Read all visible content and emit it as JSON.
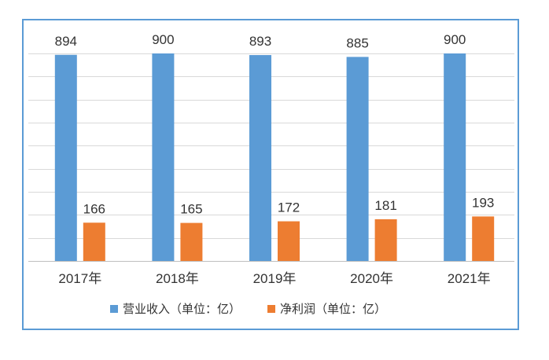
{
  "chart_data": {
    "type": "bar",
    "categories": [
      "2017年",
      "2018年",
      "2019年",
      "2020年",
      "2021年"
    ],
    "series": [
      {
        "name": "营业收入（单位：亿）",
        "values": [
          894,
          900,
          893,
          885,
          900
        ],
        "color": "#5b9bd5"
      },
      {
        "name": "净利润（单位：亿）",
        "values": [
          166,
          165,
          172,
          181,
          193
        ],
        "color": "#ed7d31"
      }
    ],
    "ylim": [
      0,
      900
    ],
    "grid": true,
    "legend_position": "bottom",
    "title": "",
    "xlabel": "",
    "ylabel": ""
  },
  "colors": {
    "frame_border": "#5b9bd5",
    "gridline": "#d9d9d9",
    "text": "#333333"
  }
}
